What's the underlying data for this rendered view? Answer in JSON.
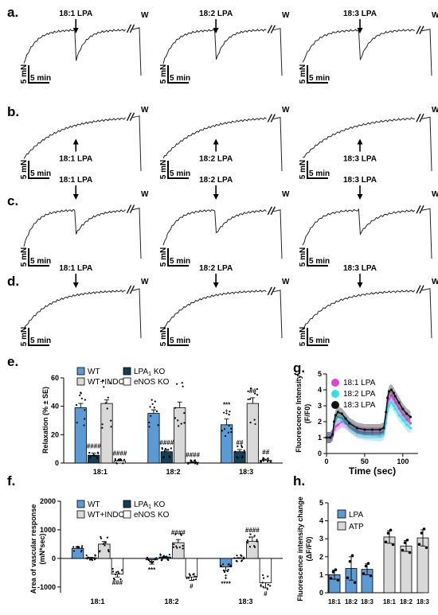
{
  "panel_letters": [
    "a.",
    "b.",
    "c.",
    "d.",
    "e.",
    "f.",
    "g.",
    "h."
  ],
  "traces": {
    "rows": [
      {
        "letter": "a.",
        "direction": "contraction",
        "labels": [
          "18:1 LPA",
          "18:2 LPA",
          "18:3 LPA"
        ]
      },
      {
        "letter": "b.",
        "direction": "sustained",
        "labels": [
          "18:1 LPA",
          "18:2 LPA",
          "18:3 LPA"
        ]
      },
      {
        "letter": "c.",
        "direction": "relaxation",
        "labels": [
          "18:1 LPA",
          "18:2 LPA",
          "18:3 LPA"
        ]
      },
      {
        "letter": "d.",
        "direction": "none",
        "labels": [
          "18:1 LPA",
          "18:2 LPA",
          "18:3 LPA"
        ]
      }
    ],
    "washout": "W",
    "force_scale": "5 mN",
    "time_scale": "5 min"
  },
  "chart_data": [
    {
      "panel": "e.",
      "type": "bar",
      "ylabel": "Relaxation (% ± SE)",
      "ylim": [
        0,
        60
      ],
      "yticks": [
        "0",
        "20",
        "40",
        "60"
      ],
      "categories": [
        "18:1",
        "18:2",
        "18:3"
      ],
      "series": [
        {
          "name": "WT",
          "color": "#5b9bd5",
          "values": [
            39,
            35,
            27
          ],
          "errors": [
            3,
            2.5,
            4
          ]
        },
        {
          "name": "LPA1 KO",
          "color": "#123f56",
          "values": [
            5.5,
            8,
            8
          ],
          "errors": [
            1.5,
            1.5,
            1.5
          ]
        },
        {
          "name": "WT+INDO",
          "color": "#d9d9d9",
          "values": [
            42,
            39,
            42
          ],
          "errors": [
            2.5,
            4,
            4
          ]
        },
        {
          "name": "eNOS KO",
          "color": "#ffffff",
          "values": [
            1.5,
            0.5,
            2
          ],
          "errors": [
            0.5,
            0.3,
            0.7
          ]
        }
      ],
      "annotations": [
        {
          "category": "18:1",
          "series": "LPA1 KO",
          "text": "####"
        },
        {
          "category": "18:1",
          "series": "eNOS KO",
          "text": "####"
        },
        {
          "category": "18:2",
          "series": "LPA1 KO",
          "text": "####"
        },
        {
          "category": "18:2",
          "series": "eNOS KO",
          "text": "####"
        },
        {
          "category": "18:3",
          "series": "WT",
          "text": "‡"
        },
        {
          "category": "18:3",
          "series": "WT",
          "text": "***"
        },
        {
          "category": "18:3",
          "series": "LPA1 KO",
          "text": "##"
        },
        {
          "category": "18:3",
          "series": "WT+INDO",
          "text": "##"
        },
        {
          "category": "18:3",
          "series": "eNOS KO",
          "text": "##"
        }
      ]
    },
    {
      "panel": "f.",
      "type": "bar",
      "ylabel": "Area of vascular response",
      "ylabel2": "(mN*sec)",
      "ylim": [
        -1200,
        2000
      ],
      "yticks": [
        "-1000",
        "0",
        "1000",
        "2000"
      ],
      "categories": [
        "18:1",
        "18:2",
        "18:3"
      ],
      "series": [
        {
          "name": "WT",
          "color": "#5b9bd5",
          "values": [
            350,
            -50,
            -300
          ],
          "errors": [
            60,
            150,
            130
          ]
        },
        {
          "name": "LPA1 KO",
          "color": "#123f56",
          "values": [
            20,
            50,
            10
          ],
          "errors": [
            15,
            20,
            15
          ]
        },
        {
          "name": "WT+INDO",
          "color": "#d9d9d9",
          "values": [
            500,
            550,
            600
          ],
          "errors": [
            90,
            110,
            150
          ]
        },
        {
          "name": "eNOS KO",
          "color": "#ffffff",
          "values": [
            -550,
            -650,
            -850
          ],
          "errors": [
            100,
            120,
            180
          ]
        }
      ],
      "annotations": [
        {
          "category": "18:1",
          "series": "eNOS KO",
          "text": "###"
        },
        {
          "category": "18:2",
          "series": "WT",
          "text": "***"
        },
        {
          "category": "18:2",
          "series": "WT+INDO",
          "text": "####"
        },
        {
          "category": "18:2",
          "series": "eNOS KO",
          "text": "#"
        },
        {
          "category": "18:3",
          "series": "WT",
          "text": "‡"
        },
        {
          "category": "18:3",
          "series": "WT",
          "text": "****"
        },
        {
          "category": "18:3",
          "series": "WT+INDO",
          "text": "####"
        },
        {
          "category": "18:3",
          "series": "eNOS KO",
          "text": "#"
        }
      ]
    },
    {
      "panel": "g.",
      "type": "line",
      "xlabel": "Time (sec)",
      "ylabel": "Fluorescence Intensity",
      "ylabel2": "(F/F0)",
      "xlim": [
        0,
        120
      ],
      "ylim": [
        0,
        5
      ],
      "xticks": [
        "0",
        "50",
        "100"
      ],
      "yticks": [
        "0",
        "1",
        "2",
        "3",
        "4",
        "5"
      ],
      "x": [
        0,
        5,
        8,
        10,
        12,
        15,
        20,
        25,
        30,
        40,
        50,
        60,
        70,
        75,
        78,
        80,
        82,
        85,
        88,
        90,
        95,
        100,
        105,
        110
      ],
      "series": [
        {
          "name": "18:1 LPA",
          "color": "#e040d8",
          "values": [
            1.0,
            1.0,
            1.1,
            1.5,
            1.7,
            1.8,
            2.0,
            1.9,
            1.7,
            1.4,
            1.3,
            1.3,
            1.3,
            1.35,
            2.2,
            3.0,
            3.4,
            3.6,
            3.4,
            3.2,
            2.8,
            2.4,
            2.1,
            1.9
          ]
        },
        {
          "name": "18:2 LPA",
          "color": "#2fe0e8",
          "values": [
            1.0,
            1.0,
            1.2,
            1.8,
            2.1,
            2.3,
            2.2,
            2.0,
            1.7,
            1.3,
            1.2,
            1.15,
            1.1,
            1.2,
            1.9,
            2.7,
            3.0,
            3.2,
            3.0,
            2.8,
            2.4,
            2.1,
            1.8,
            1.6
          ]
        },
        {
          "name": "18:3 LPA",
          "color": "#111111",
          "values": [
            1.0,
            1.0,
            1.2,
            2.0,
            2.4,
            2.6,
            2.5,
            2.2,
            1.9,
            1.6,
            1.5,
            1.5,
            1.5,
            1.6,
            2.6,
            3.5,
            3.9,
            4.0,
            3.8,
            3.6,
            3.2,
            2.8,
            2.5,
            2.3
          ]
        }
      ]
    },
    {
      "panel": "h.",
      "type": "bar",
      "ylabel": "Fluorescence intensity change",
      "ylabel2": "(ΔF/F0)",
      "ylim": [
        0,
        5
      ],
      "yticks": [
        "0",
        "1",
        "2",
        "3",
        "4",
        "5"
      ],
      "categories": [
        "18:1",
        "18:2",
        "18:3",
        "18:1",
        "18:2",
        "18:3"
      ],
      "series": [
        {
          "name": "LPA",
          "color": "#5b9bd5",
          "values": [
            1.0,
            1.35,
            1.3,
            null,
            null,
            null
          ],
          "errors": [
            0.25,
            0.65,
            0.3,
            null,
            null,
            null
          ]
        },
        {
          "name": "ATP",
          "color": "#d9d9d9",
          "values": [
            null,
            null,
            null,
            3.1,
            2.6,
            3.05
          ],
          "errors": [
            null,
            null,
            null,
            0.35,
            0.3,
            0.45
          ]
        }
      ]
    }
  ]
}
